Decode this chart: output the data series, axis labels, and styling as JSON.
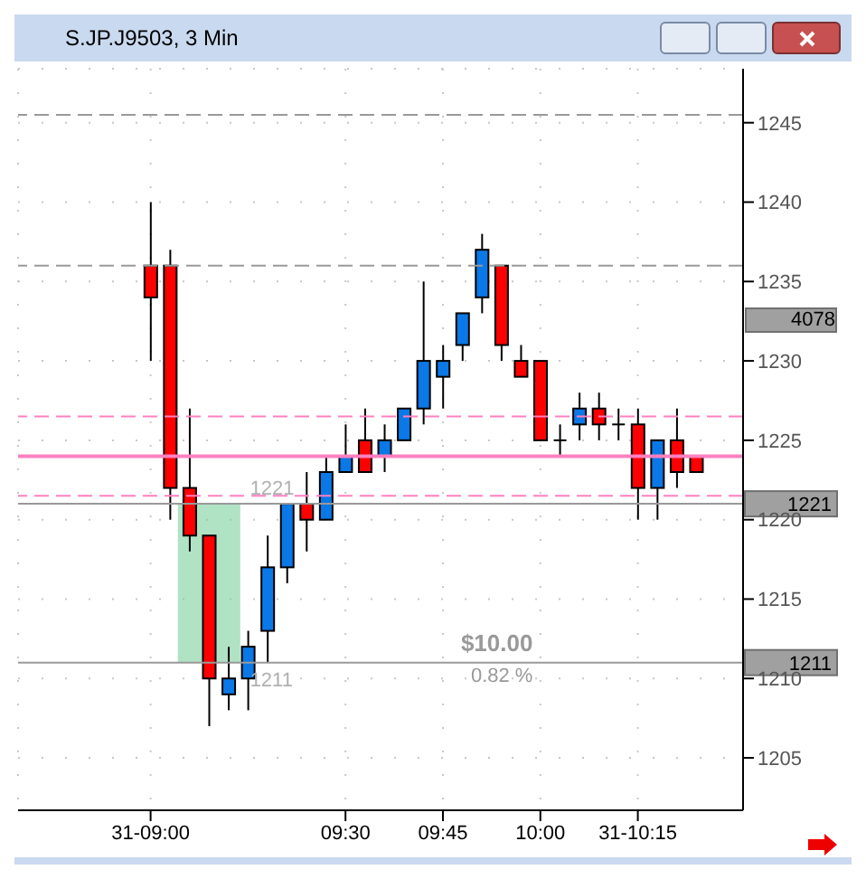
{
  "chart_data": {
    "type": "candlestick",
    "title": "S.JP.J9503, 3 Min",
    "x": [
      9,
      9.05,
      9.1,
      9.15,
      9.2,
      9.25,
      9.3,
      9.35,
      9.4,
      9.45,
      9.5,
      9.55,
      9.6,
      9.65,
      9.7,
      9.75,
      9.8,
      9.85,
      9.9,
      9.95,
      10,
      10.05,
      10.1,
      10.15,
      10.2,
      10.25,
      10.3,
      10.35,
      10.4
    ],
    "ohlc": [
      [
        1236,
        1240,
        1230,
        1234
      ],
      [
        1236,
        1237,
        1220,
        1222
      ],
      [
        1222,
        1227,
        1218,
        1219
      ],
      [
        1219,
        1219,
        1207,
        1210
      ],
      [
        1209,
        1212,
        1208,
        1210
      ],
      [
        1210,
        1213,
        1208,
        1212
      ],
      [
        1213,
        1219,
        1211,
        1217
      ],
      [
        1217,
        1221,
        1216,
        1221
      ],
      [
        1221,
        1223,
        1218,
        1220
      ],
      [
        1220,
        1224,
        1220,
        1223
      ],
      [
        1223,
        1226,
        1223,
        1224
      ],
      [
        1225,
        1227,
        1223,
        1223
      ],
      [
        1224,
        1226,
        1223,
        1225
      ],
      [
        1225,
        1227,
        1225,
        1227
      ],
      [
        1227,
        1235,
        1226,
        1230
      ],
      [
        1229,
        1231,
        1227,
        1230
      ],
      [
        1231,
        1233,
        1230,
        1233
      ],
      [
        1234,
        1238,
        1233,
        1237
      ],
      [
        1236,
        1236,
        1230,
        1231
      ],
      [
        1230,
        1231,
        1229,
        1229
      ],
      [
        1230,
        1230,
        1225,
        1225
      ],
      [
        1225,
        1226,
        1224,
        1225
      ],
      [
        1226,
        1228,
        1225,
        1227
      ],
      [
        1227,
        1228,
        1225,
        1226
      ],
      [
        1226,
        1227,
        1225,
        1226
      ],
      [
        1226,
        1227,
        1220,
        1222
      ],
      [
        1222,
        1225,
        1220,
        1225
      ],
      [
        1225,
        1227,
        1222,
        1223
      ],
      [
        1224,
        1224,
        1223,
        1223
      ]
    ],
    "colors": [
      "#ff0000",
      "#ff0000",
      "#ff0000",
      "#ff0000",
      "#0a78e6",
      "#0a78e6",
      "#0a78e6",
      "#0a78e6",
      "#ff0000",
      "#0a78e6",
      "#0a78e6",
      "#ff0000",
      "#0a78e6",
      "#0a78e6",
      "#0a78e6",
      "#0a78e6",
      "#0a78e6",
      "#0a78e6",
      "#ff0000",
      "#ff0000",
      "#ff0000",
      "#000000",
      "#0a78e6",
      "#ff0000",
      "#000000",
      "#ff0000",
      "#0a78e6",
      "#ff0000",
      "#ff0000"
    ],
    "xlim": [
      8.66,
      10.52
    ],
    "xticks": [
      {
        "value": 9,
        "label": "31-09:00"
      },
      {
        "value": 9.5,
        "label": "09:30"
      },
      {
        "value": 9.75,
        "label": "09:45"
      },
      {
        "value": 10,
        "label": "10:00"
      },
      {
        "value": 10.25,
        "label": "31-10:15"
      }
    ],
    "ylim": [
      1201.7,
      1248.4
    ],
    "yticks": [
      1205,
      1210,
      1215,
      1220,
      1225,
      1230,
      1235,
      1240,
      1245
    ],
    "grid": true,
    "ref_lines": [
      {
        "axis": "y",
        "value": 1245.5,
        "color": "#999999",
        "line_style": "dashed"
      },
      {
        "axis": "y",
        "value": 1236,
        "color": "#999999",
        "line_style": "dashed"
      },
      {
        "axis": "y",
        "value": 1226.5,
        "color": "#ff80c0",
        "line_style": "dashed"
      },
      {
        "axis": "y",
        "value": 1224,
        "color": "#ff80c0",
        "line_style": "solid"
      },
      {
        "axis": "y",
        "value": 1221.5,
        "color": "#ff80c0",
        "line_style": "dashed"
      },
      {
        "axis": "y",
        "value": 1221,
        "color": "#999999",
        "line_style": "solid",
        "label": "1221"
      },
      {
        "axis": "y",
        "value": 1211,
        "color": "#999999",
        "line_style": "solid",
        "label": "1211"
      }
    ],
    "bands": [
      {
        "axis": "x",
        "from": 9.07,
        "to": 9.23,
        "color": "#7ccf9c"
      }
    ],
    "annotations": [
      "4078",
      "$10.00",
      "0.82 %"
    ]
  }
}
